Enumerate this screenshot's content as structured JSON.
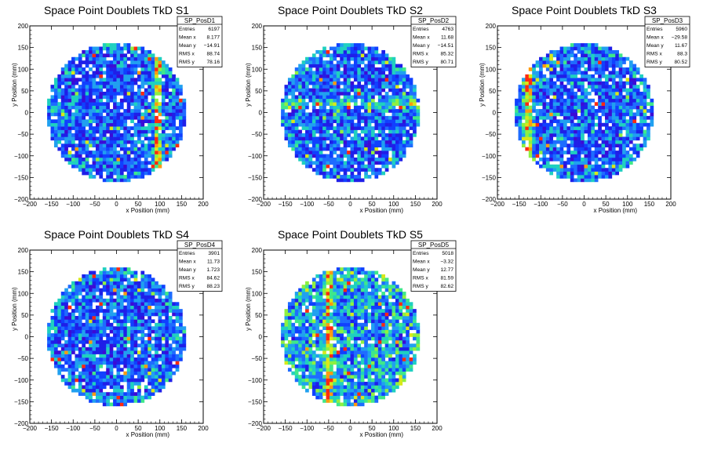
{
  "chart_data": [
    {
      "type": "heatmap",
      "title": "Space Point Doublets TkD S1",
      "xlabel": "x Position (mm)",
      "ylabel": "y Position (mm)",
      "xlim": [
        -200,
        200
      ],
      "ylim": [
        -200,
        200
      ],
      "x_ticks": [
        "−200",
        "−150",
        "−100",
        "−50",
        "0",
        "50",
        "100",
        "150",
        "200"
      ],
      "y_ticks": [
        "−200",
        "−150",
        "−100",
        "−50",
        "0",
        "50",
        "100",
        "150",
        "200"
      ],
      "data_shape": "disk",
      "disk_radius": 160,
      "stats": {
        "name": "SP_PosD1",
        "entries": [
          {
            "label": "Entries",
            "value": "6197"
          },
          {
            "label": "Mean x",
            "value": "8.177"
          },
          {
            "label": "Mean y",
            "value": "−14.91"
          },
          {
            "label": "RMS x",
            "value": "88.74"
          },
          {
            "label": "RMS y",
            "value": "78.16"
          }
        ]
      },
      "features": [
        {
          "type": "vband",
          "x": 95,
          "strength": 0.55
        }
      ]
    },
    {
      "type": "heatmap",
      "title": "Space Point Doublets TkD S2",
      "xlabel": "x Position (mm)",
      "ylabel": "y Position (mm)",
      "xlim": [
        -200,
        200
      ],
      "ylim": [
        -200,
        200
      ],
      "x_ticks": [
        "−200",
        "−150",
        "−100",
        "−50",
        "0",
        "50",
        "100",
        "150",
        "200"
      ],
      "y_ticks": [
        "−200",
        "−150",
        "−100",
        "−50",
        "0",
        "50",
        "100",
        "150",
        "200"
      ],
      "data_shape": "disk",
      "disk_radius": 160,
      "stats": {
        "name": "SP_PosD2",
        "entries": [
          {
            "label": "Entries",
            "value": "4763"
          },
          {
            "label": "Mean x",
            "value": "11.68"
          },
          {
            "label": "Mean y",
            "value": "−14.51"
          },
          {
            "label": "RMS x",
            "value": "85.32"
          },
          {
            "label": "RMS y",
            "value": "80.71"
          }
        ]
      },
      "features": [
        {
          "type": "hband",
          "y": 20,
          "strength": 0.3
        }
      ]
    },
    {
      "type": "heatmap",
      "title": "Space Point Doublets TkD S3",
      "xlabel": "x Position (mm)",
      "ylabel": "y Position (mm)",
      "xlim": [
        -200,
        200
      ],
      "ylim": [
        -200,
        200
      ],
      "x_ticks": [
        "−200",
        "−150",
        "−100",
        "−50",
        "0",
        "50",
        "100",
        "150",
        "200"
      ],
      "y_ticks": [
        "−200",
        "−150",
        "−100",
        "−50",
        "0",
        "50",
        "100",
        "150",
        "200"
      ],
      "data_shape": "disk",
      "disk_radius": 160,
      "stats": {
        "name": "SP_PosD3",
        "entries": [
          {
            "label": "Entries",
            "value": "5960"
          },
          {
            "label": "Mean x",
            "value": "−29.58"
          },
          {
            "label": "Mean y",
            "value": "11.67"
          },
          {
            "label": "RMS x",
            "value": "88.3"
          },
          {
            "label": "RMS y",
            "value": "80.52"
          }
        ]
      },
      "features": [
        {
          "type": "vband",
          "x": -130,
          "strength": 0.6
        }
      ]
    },
    {
      "type": "heatmap",
      "title": "Space Point Doublets TkD S4",
      "xlabel": "x Position (mm)",
      "ylabel": "y Position (mm)",
      "xlim": [
        -200,
        200
      ],
      "ylim": [
        -200,
        200
      ],
      "x_ticks": [
        "−200",
        "−150",
        "−100",
        "−50",
        "0",
        "50",
        "100",
        "150",
        "200"
      ],
      "y_ticks": [
        "−200",
        "−150",
        "−100",
        "−50",
        "0",
        "50",
        "100",
        "150",
        "200"
      ],
      "data_shape": "disk",
      "disk_radius": 160,
      "stats": {
        "name": "SP_PosD4",
        "entries": [
          {
            "label": "Entries",
            "value": "3901"
          },
          {
            "label": "Mean x",
            "value": "11.73"
          },
          {
            "label": "Mean y",
            "value": "1.723"
          },
          {
            "label": "RMS x",
            "value": "84.62"
          },
          {
            "label": "RMS y",
            "value": "88.23"
          }
        ]
      },
      "features": []
    },
    {
      "type": "heatmap",
      "title": "Space Point Doublets TkD S5",
      "xlabel": "x Position (mm)",
      "ylabel": "y Position (mm)",
      "xlim": [
        -200,
        200
      ],
      "ylim": [
        -200,
        200
      ],
      "x_ticks": [
        "−200",
        "−150",
        "−100",
        "−50",
        "0",
        "50",
        "100",
        "150",
        "200"
      ],
      "y_ticks": [
        "−200",
        "−150",
        "−100",
        "−50",
        "0",
        "50",
        "100",
        "150",
        "200"
      ],
      "data_shape": "disk",
      "disk_radius": 160,
      "stats": {
        "name": "SP_PosD5",
        "entries": [
          {
            "label": "Entries",
            "value": "5018"
          },
          {
            "label": "Mean x",
            "value": "−3.32"
          },
          {
            "label": "Mean y",
            "value": "12.77"
          },
          {
            "label": "RMS x",
            "value": "81.59"
          },
          {
            "label": "RMS y",
            "value": "82.62"
          }
        ]
      },
      "features": [
        {
          "type": "vband",
          "x": -50,
          "strength": 0.45
        },
        {
          "type": "boost",
          "strength": 0.25
        }
      ]
    }
  ],
  "palette": [
    "#3b0bd6",
    "#1f1fe8",
    "#1040ff",
    "#1e6cff",
    "#20a0f0",
    "#1fd0c0",
    "#3fe88a",
    "#8ff040",
    "#d8e81a",
    "#ff9a10",
    "#ff2a10"
  ]
}
